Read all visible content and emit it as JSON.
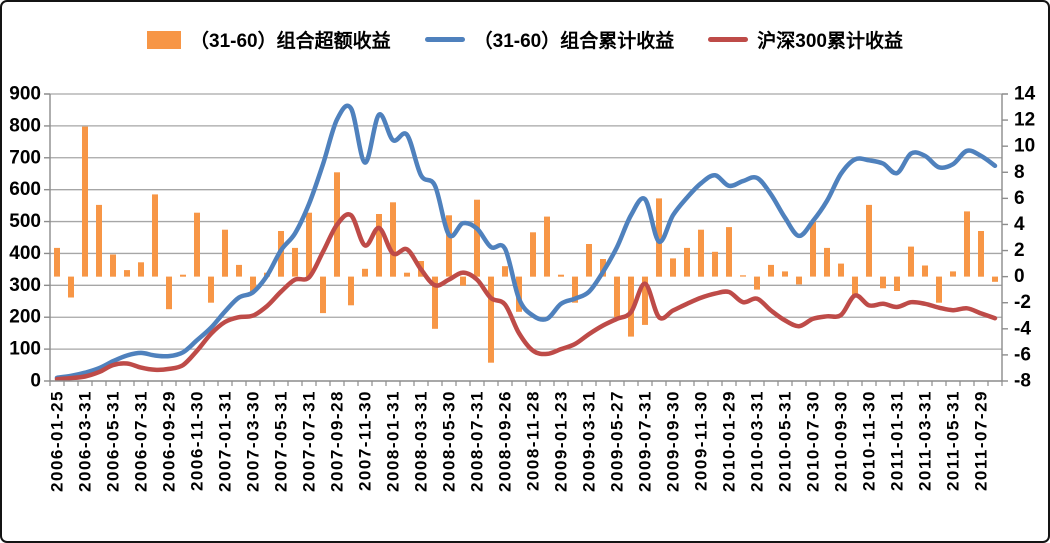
{
  "figure": {
    "background": "#ffffff",
    "border_color": "#141414"
  },
  "chart_data": {
    "type": "combo",
    "title": "",
    "legend_position": "top",
    "grid": true,
    "num_points": 68,
    "points_per_label": 2,
    "x_labels": [
      "2006-01-25",
      "2006-03-31",
      "2006-05-31",
      "2006-07-31",
      "2006-09-29",
      "2006-11-30",
      "2007-01-31",
      "2007-03-30",
      "2007-05-31",
      "2007-07-31",
      "2007-09-28",
      "2007-11-30",
      "2008-01-31",
      "2008-03-31",
      "2008-05-30",
      "2008-07-31",
      "2008-09-26",
      "2008-11-28",
      "2009-01-23",
      "2009-03-31",
      "2009-05-27",
      "2009-07-31",
      "2009-09-30",
      "2009-11-30",
      "2010-01-29",
      "2010-03-31",
      "2010-05-31",
      "2010-07-30",
      "2010-09-30",
      "2010-11-30",
      "2011-01-31",
      "2011-03-31",
      "2011-05-31",
      "2011-07-29"
    ],
    "left_axis": {
      "min": 0,
      "max": 900,
      "step": 100,
      "tick_labels": [
        "0",
        "100",
        "200",
        "300",
        "400",
        "500",
        "600",
        "700",
        "800",
        "900"
      ]
    },
    "right_axis": {
      "min": -8,
      "max": 14,
      "step": 2,
      "tick_labels": [
        "-8",
        "-6",
        "-4",
        "-2",
        "0",
        "2",
        "4",
        "6",
        "8",
        "10",
        "12",
        "14"
      ]
    },
    "gridline_color": "#A6A6A6",
    "axis_color": "#8C8C8C",
    "series": [
      {
        "name": "（31-60）组合超额收益",
        "type": "bar",
        "axis": "right",
        "color": "#F79646",
        "values": [
          2.2,
          -1.6,
          11.5,
          5.5,
          1.7,
          0.5,
          1.1,
          6.3,
          -2.5,
          0.15,
          4.9,
          -2.0,
          3.6,
          0.9,
          -1.2,
          0.3,
          3.5,
          2.2,
          4.9,
          -2.8,
          8.0,
          -2.2,
          0.6,
          4.8,
          5.7,
          0.3,
          1.2,
          -4.0,
          4.7,
          -0.7,
          5.9,
          -6.6,
          0.8,
          -2.7,
          3.4,
          4.6,
          0.15,
          -2.0,
          2.5,
          1.35,
          -3.1,
          -4.6,
          -3.7,
          6.0,
          1.4,
          2.2,
          3.6,
          1.9,
          3.8,
          0.1,
          -1.0,
          0.9,
          0.4,
          -0.6,
          4.2,
          2.2,
          1.0,
          -1.4,
          5.5,
          -0.9,
          -1.1,
          2.3,
          0.85,
          -2.0,
          0.4,
          5.0,
          3.5,
          -0.4
        ]
      },
      {
        "name": "（31-60）组合累计收益",
        "type": "line",
        "axis": "left",
        "color": "#4F81BD",
        "values": [
          10,
          16,
          26,
          40,
          62,
          80,
          88,
          80,
          78,
          90,
          128,
          167,
          218,
          262,
          278,
          330,
          410,
          463,
          555,
          680,
          820,
          855,
          685,
          835,
          755,
          772,
          645,
          612,
          458,
          495,
          478,
          420,
          415,
          258,
          205,
          195,
          242,
          258,
          280,
          342,
          420,
          520,
          570,
          437,
          520,
          575,
          620,
          645,
          612,
          627,
          637,
          585,
          512,
          455,
          502,
          565,
          650,
          695,
          692,
          682,
          652,
          713,
          706,
          670,
          680,
          722,
          706,
          675
        ]
      },
      {
        "name": "沪深300累计收益",
        "type": "line",
        "axis": "left",
        "color": "#BE4B48",
        "values": [
          6,
          9,
          14,
          28,
          50,
          55,
          42,
          35,
          38,
          50,
          95,
          148,
          185,
          200,
          205,
          235,
          280,
          318,
          325,
          405,
          490,
          520,
          425,
          480,
          400,
          413,
          350,
          300,
          318,
          340,
          318,
          260,
          240,
          150,
          95,
          85,
          100,
          116,
          147,
          174,
          195,
          216,
          305,
          200,
          221,
          242,
          261,
          274,
          279,
          247,
          258,
          221,
          190,
          172,
          195,
          203,
          207,
          268,
          237,
          242,
          232,
          247,
          242,
          230,
          222,
          228,
          212,
          197
        ]
      }
    ]
  }
}
